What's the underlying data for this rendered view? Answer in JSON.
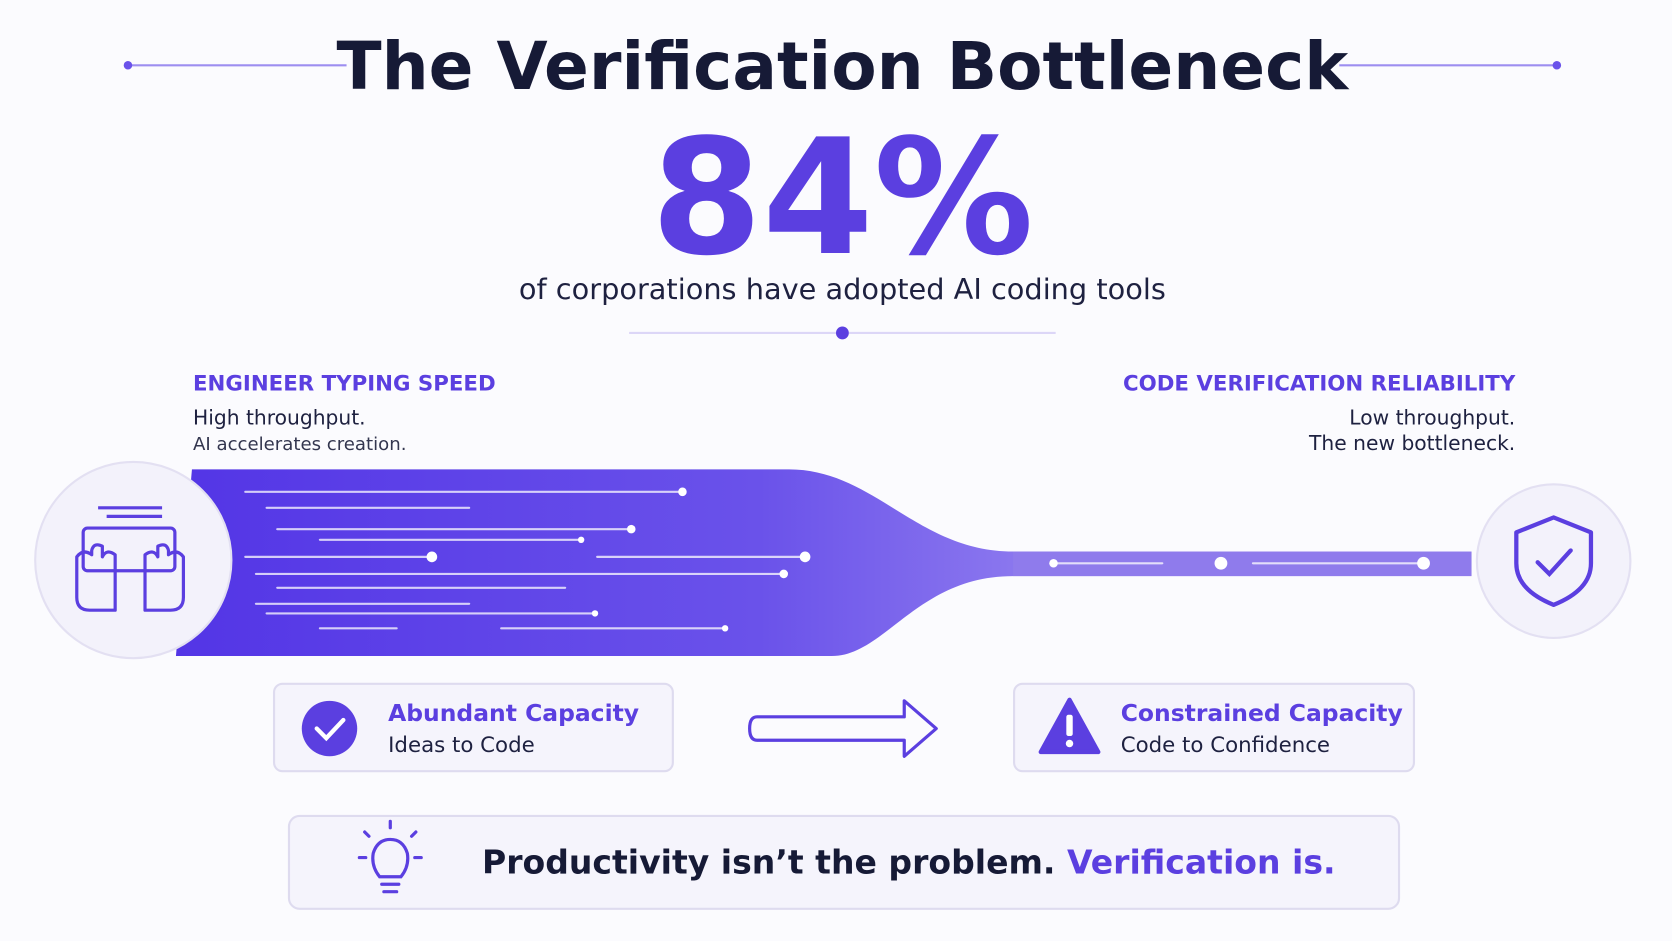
{
  "header": {
    "title": "The Verification Bottleneck"
  },
  "stat": {
    "value": "84%",
    "caption": "of corporations have adopted AI coding tools"
  },
  "left": {
    "title": "ENGINEER TYPING SPEED",
    "line1": "High throughput.",
    "line2": "AI accelerates creation."
  },
  "right": {
    "title": "CODE VERIFICATION RELIABILITY",
    "line1": "Low throughput.",
    "line2": "The new bottleneck."
  },
  "cards": [
    {
      "title": "Abundant Capacity",
      "subtitle": "Ideas to Code"
    },
    {
      "title": "Constrained Capacity",
      "subtitle": "Code to Confidence"
    }
  ],
  "footer": {
    "text": "Productivity isn’t the problem.",
    "highlight": "Verification is."
  }
}
